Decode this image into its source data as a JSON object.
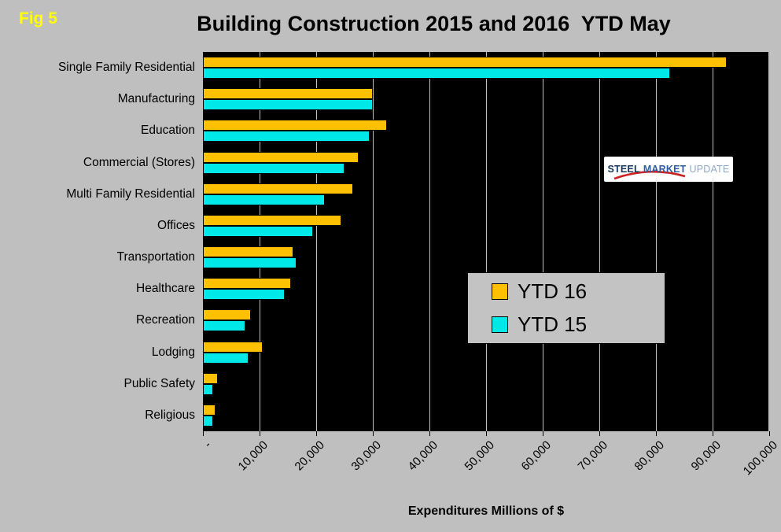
{
  "fig_label": "Fig 5",
  "title": "Building Construction 2015 and 2016  YTD May",
  "xlabel": "Expenditures Millions of $",
  "logo": {
    "steel": "STEEL",
    "market": "MARKET",
    "update": "UPDATE"
  },
  "colors": {
    "page_background": "#BFBFBF",
    "plot_background": "#000000",
    "ytd16": "#FFC000",
    "ytd15": "#00E8E8",
    "gridline": "#BFBFBF",
    "fig_label": "#FFFF00"
  },
  "chart_data": {
    "type": "bar",
    "orientation": "horizontal",
    "title": "Building Construction 2015 and 2016  YTD May",
    "xlabel": "Expenditures Millions of $",
    "xlim": [
      0,
      100000
    ],
    "grid": true,
    "legend_position": "middle-right",
    "categories": [
      "Single Family Residential",
      "Manufacturing",
      "Education",
      "Commercial (Stores)",
      "Multi Family Residential",
      "Offices",
      "Transportation",
      "Healthcare",
      "Recreation",
      "Lodging",
      "Public Safety",
      "Religious"
    ],
    "series": [
      {
        "name": "YTD 16",
        "color": "#FFC000",
        "values": [
          92500,
          30000,
          32500,
          27500,
          26500,
          24500,
          16000,
          15500,
          8500,
          10500,
          2600,
          2200
        ]
      },
      {
        "name": "YTD 15",
        "color": "#00E8E8",
        "values": [
          82500,
          30000,
          29500,
          25000,
          21500,
          19500,
          16500,
          14500,
          7500,
          8000,
          1800,
          1800
        ]
      }
    ],
    "x_ticks": [
      "-",
      "10,000",
      "20,000",
      "30,000",
      "40,000",
      "50,000",
      "60,000",
      "70,000",
      "80,000",
      "90,000",
      "100,000"
    ]
  }
}
